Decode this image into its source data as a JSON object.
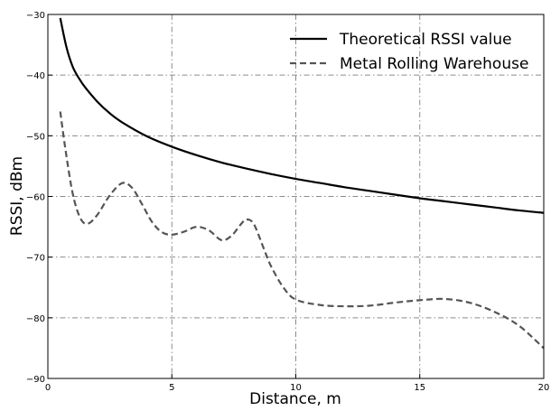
{
  "chart_data": {
    "type": "line",
    "title": "",
    "xlabel": "Distance, m",
    "ylabel": "RSSI, dBm",
    "xlim": [
      0,
      20
    ],
    "ylim": [
      -90,
      -30
    ],
    "xticks": [
      0,
      5,
      10,
      15,
      20
    ],
    "yticks": [
      -90,
      -80,
      -70,
      -60,
      -50,
      -40,
      -30
    ],
    "xtick_labels": [
      "0",
      "5",
      "10",
      "15",
      "20"
    ],
    "ytick_labels": [
      "−90",
      "−80",
      "−70",
      "−60",
      "−50",
      "−40",
      "−30"
    ],
    "grid": true,
    "legend_position": "top-right",
    "series": [
      {
        "name": "Theoretical RSSI value",
        "style": "solid",
        "color": "#000000",
        "x": [
          0.5,
          0.75,
          1.0,
          1.25,
          1.5,
          2.0,
          2.5,
          3.0,
          4.0,
          5.0,
          6.0,
          7.0,
          8.0,
          9.0,
          10.0,
          11.0,
          12.0,
          13.0,
          14.0,
          15.0,
          16.0,
          17.0,
          18.0,
          19.0,
          20.0
        ],
        "y": [
          -30.6,
          -35.4,
          -38.6,
          -40.5,
          -42.0,
          -44.4,
          -46.3,
          -47.8,
          -50.1,
          -51.8,
          -53.2,
          -54.4,
          -55.4,
          -56.3,
          -57.1,
          -57.8,
          -58.5,
          -59.1,
          -59.7,
          -60.3,
          -60.8,
          -61.3,
          -61.8,
          -62.3,
          -62.7
        ]
      },
      {
        "name": "Metal Rolling Warehouse",
        "style": "dashed",
        "color": "#555555",
        "x": [
          0.5,
          0.7,
          1.0,
          1.3,
          1.6,
          2.0,
          2.5,
          3.0,
          3.4,
          3.8,
          4.2,
          4.6,
          5.0,
          5.5,
          6.0,
          6.5,
          7.0,
          7.4,
          7.8,
          8.0,
          8.3,
          8.7,
          9.0,
          9.5,
          10.0,
          11.0,
          12.0,
          13.0,
          14.0,
          15.0,
          16.0,
          17.0,
          18.0,
          19.0,
          20.0
        ],
        "y": [
          -46.0,
          -52.0,
          -59.5,
          -63.5,
          -64.5,
          -63.0,
          -59.8,
          -57.8,
          -58.6,
          -61.3,
          -64.2,
          -65.9,
          -66.3,
          -65.8,
          -65.0,
          -65.6,
          -67.2,
          -66.5,
          -64.5,
          -63.8,
          -64.5,
          -68.5,
          -71.5,
          -75.0,
          -77.0,
          -77.9,
          -78.1,
          -78.0,
          -77.5,
          -77.1,
          -76.9,
          -77.5,
          -79.0,
          -81.3,
          -85.0
        ]
      }
    ]
  }
}
